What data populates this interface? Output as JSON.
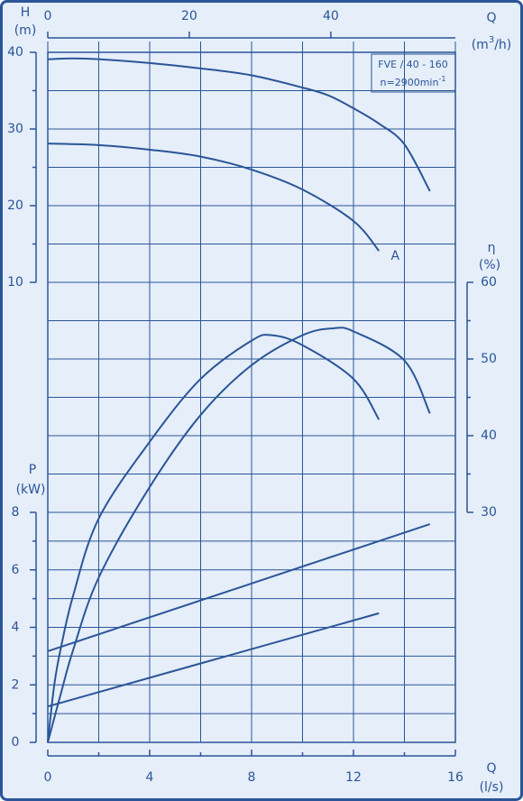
{
  "chart_data": {
    "type": "line",
    "title": "FVE / 40 - 160",
    "subtitle": {
      "text": "n=2900min",
      "sup": "-1"
    },
    "color": "#2b5597",
    "grid": true,
    "x_label": "Q",
    "x_unit": "(l/s)",
    "xlim": [
      0,
      16
    ],
    "xticks": [
      0,
      4,
      8,
      12,
      16
    ],
    "xminorticks": [
      2,
      6,
      10,
      14
    ],
    "x2_label": "Q",
    "x2_unit": {
      "before": "(m",
      "sup": "3",
      "after": "/h)"
    },
    "x2lim": [
      0,
      57.6
    ],
    "x2ticks": [
      0,
      20,
      40
    ],
    "y_label": "H",
    "y_unit": "(m)",
    "ylim": [
      -50,
      40
    ],
    "yticks": [
      10,
      20,
      30,
      40
    ],
    "yminorticks": [
      15,
      25,
      35
    ],
    "y2_label": "η",
    "y2_unit": "(%)",
    "y2lim": [
      0,
      90
    ],
    "y2ticks": [
      30,
      40,
      50,
      60
    ],
    "y2minorticks": [
      35,
      45,
      55
    ],
    "y3_label": "P",
    "y3_unit": "(kW)",
    "y3lim": [
      0,
      24
    ],
    "y3ticks": [
      0,
      2,
      4,
      6,
      8
    ],
    "y3minorticks": [
      1,
      3,
      5,
      7
    ],
    "series": [
      {
        "axis": "y",
        "x": [
          0,
          1,
          2,
          4,
          6,
          8,
          10,
          11,
          12,
          13,
          14,
          15
        ],
        "values": [
          39.1,
          39.2,
          39.1,
          38.6,
          37.9,
          37.0,
          35.4,
          34.4,
          32.7,
          30.7,
          28.0,
          21.9
        ]
      },
      {
        "axis": "y",
        "label": "A",
        "x": [
          0,
          2,
          4,
          6,
          8,
          10,
          12,
          13
        ],
        "values": [
          28.1,
          27.9,
          27.3,
          26.4,
          24.7,
          22.1,
          18.0,
          14.1
        ]
      },
      {
        "axis": "y2",
        "x": [
          0,
          0.25,
          0.5,
          1,
          2,
          4,
          6,
          8,
          8.8,
          10,
          12,
          13
        ],
        "values": [
          0,
          7.4,
          12.1,
          19.2,
          29.2,
          39.2,
          47.4,
          52.4,
          53.1,
          51.8,
          47.4,
          42.1
        ]
      },
      {
        "axis": "y2",
        "x": [
          0,
          0.5,
          1,
          2,
          4,
          6,
          8,
          10,
          11.2,
          12,
          14,
          15
        ],
        "values": [
          0,
          6.2,
          12.1,
          21.5,
          33.3,
          42.7,
          49.2,
          53.1,
          54.0,
          53.6,
          49.8,
          42.9
        ]
      },
      {
        "axis": "y3",
        "x": [
          0,
          15
        ],
        "values": [
          3.17,
          7.59
        ]
      },
      {
        "axis": "y3",
        "x": [
          0,
          13
        ],
        "values": [
          1.25,
          4.49
        ]
      }
    ]
  }
}
